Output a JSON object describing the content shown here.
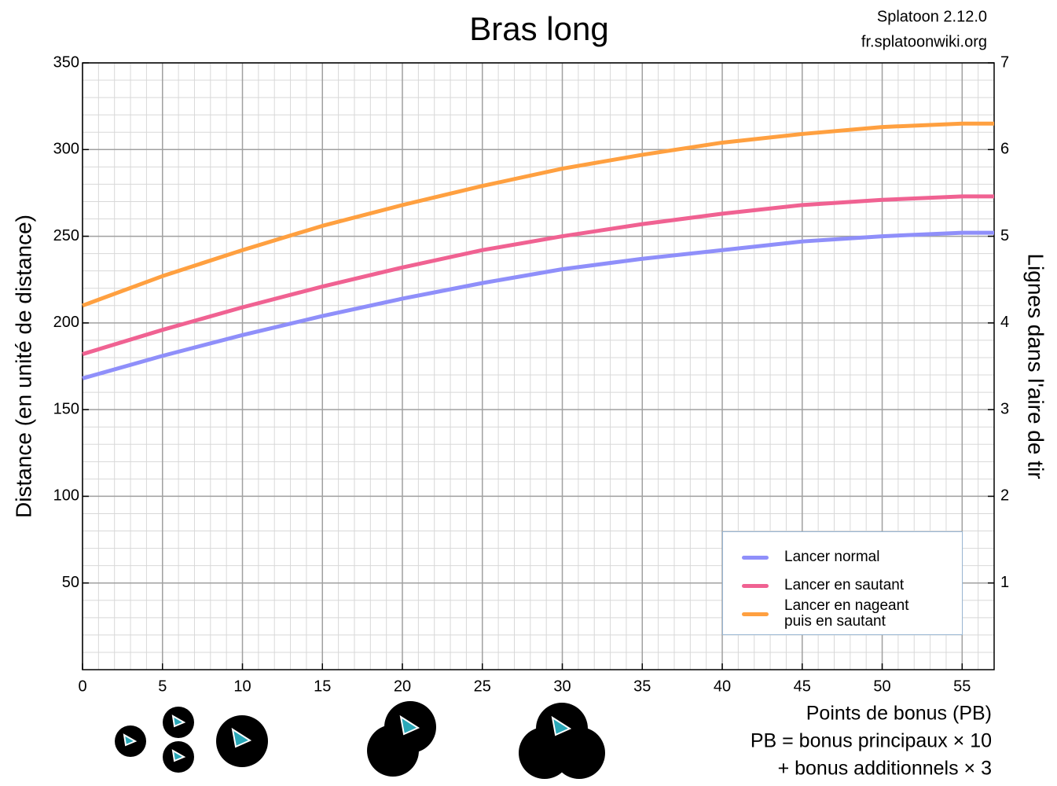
{
  "chart_data": {
    "type": "line",
    "title": "Bras long",
    "source": [
      "Splatoon 2.12.0",
      "fr.splatoonwiki.org"
    ],
    "x_label": "Points de bonus (PB)",
    "notes": [
      "PB = bonus principaux × 10",
      "+ bonus additionnels × 3"
    ],
    "y_label": "Distance (en unité de distance)",
    "y2_label": "Lignes dans l'aire de tir",
    "x": [
      0,
      5,
      10,
      15,
      20,
      25,
      30,
      35,
      40,
      45,
      50,
      55,
      57
    ],
    "series": [
      {
        "name": "Lancer normal",
        "color": "#8f8ffa",
        "values": [
          168,
          181,
          193,
          204,
          214,
          223,
          231,
          237,
          242,
          247,
          250,
          252,
          252
        ]
      },
      {
        "name": "Lancer en sautant",
        "color": "#f06292",
        "values": [
          182,
          196,
          209,
          221,
          232,
          242,
          250,
          257,
          263,
          268,
          271,
          273,
          273
        ]
      },
      {
        "name": "Lancer en nageant\npuis en sautant",
        "color": "#ffa040",
        "values": [
          210,
          227,
          242,
          256,
          268,
          279,
          289,
          297,
          304,
          309,
          313,
          315,
          315
        ]
      }
    ],
    "xlim": [
      0,
      57
    ],
    "xticks": [
      0,
      5,
      10,
      15,
      20,
      25,
      30,
      35,
      40,
      45,
      50,
      55
    ],
    "ylim": [
      0,
      350
    ],
    "yticks": [
      50,
      100,
      150,
      200,
      250,
      300,
      350
    ],
    "y2lim": [
      0,
      7
    ],
    "y2ticks": [
      1,
      2,
      3,
      4,
      5,
      6,
      7
    ],
    "grid": true,
    "legend": "lower right"
  }
}
